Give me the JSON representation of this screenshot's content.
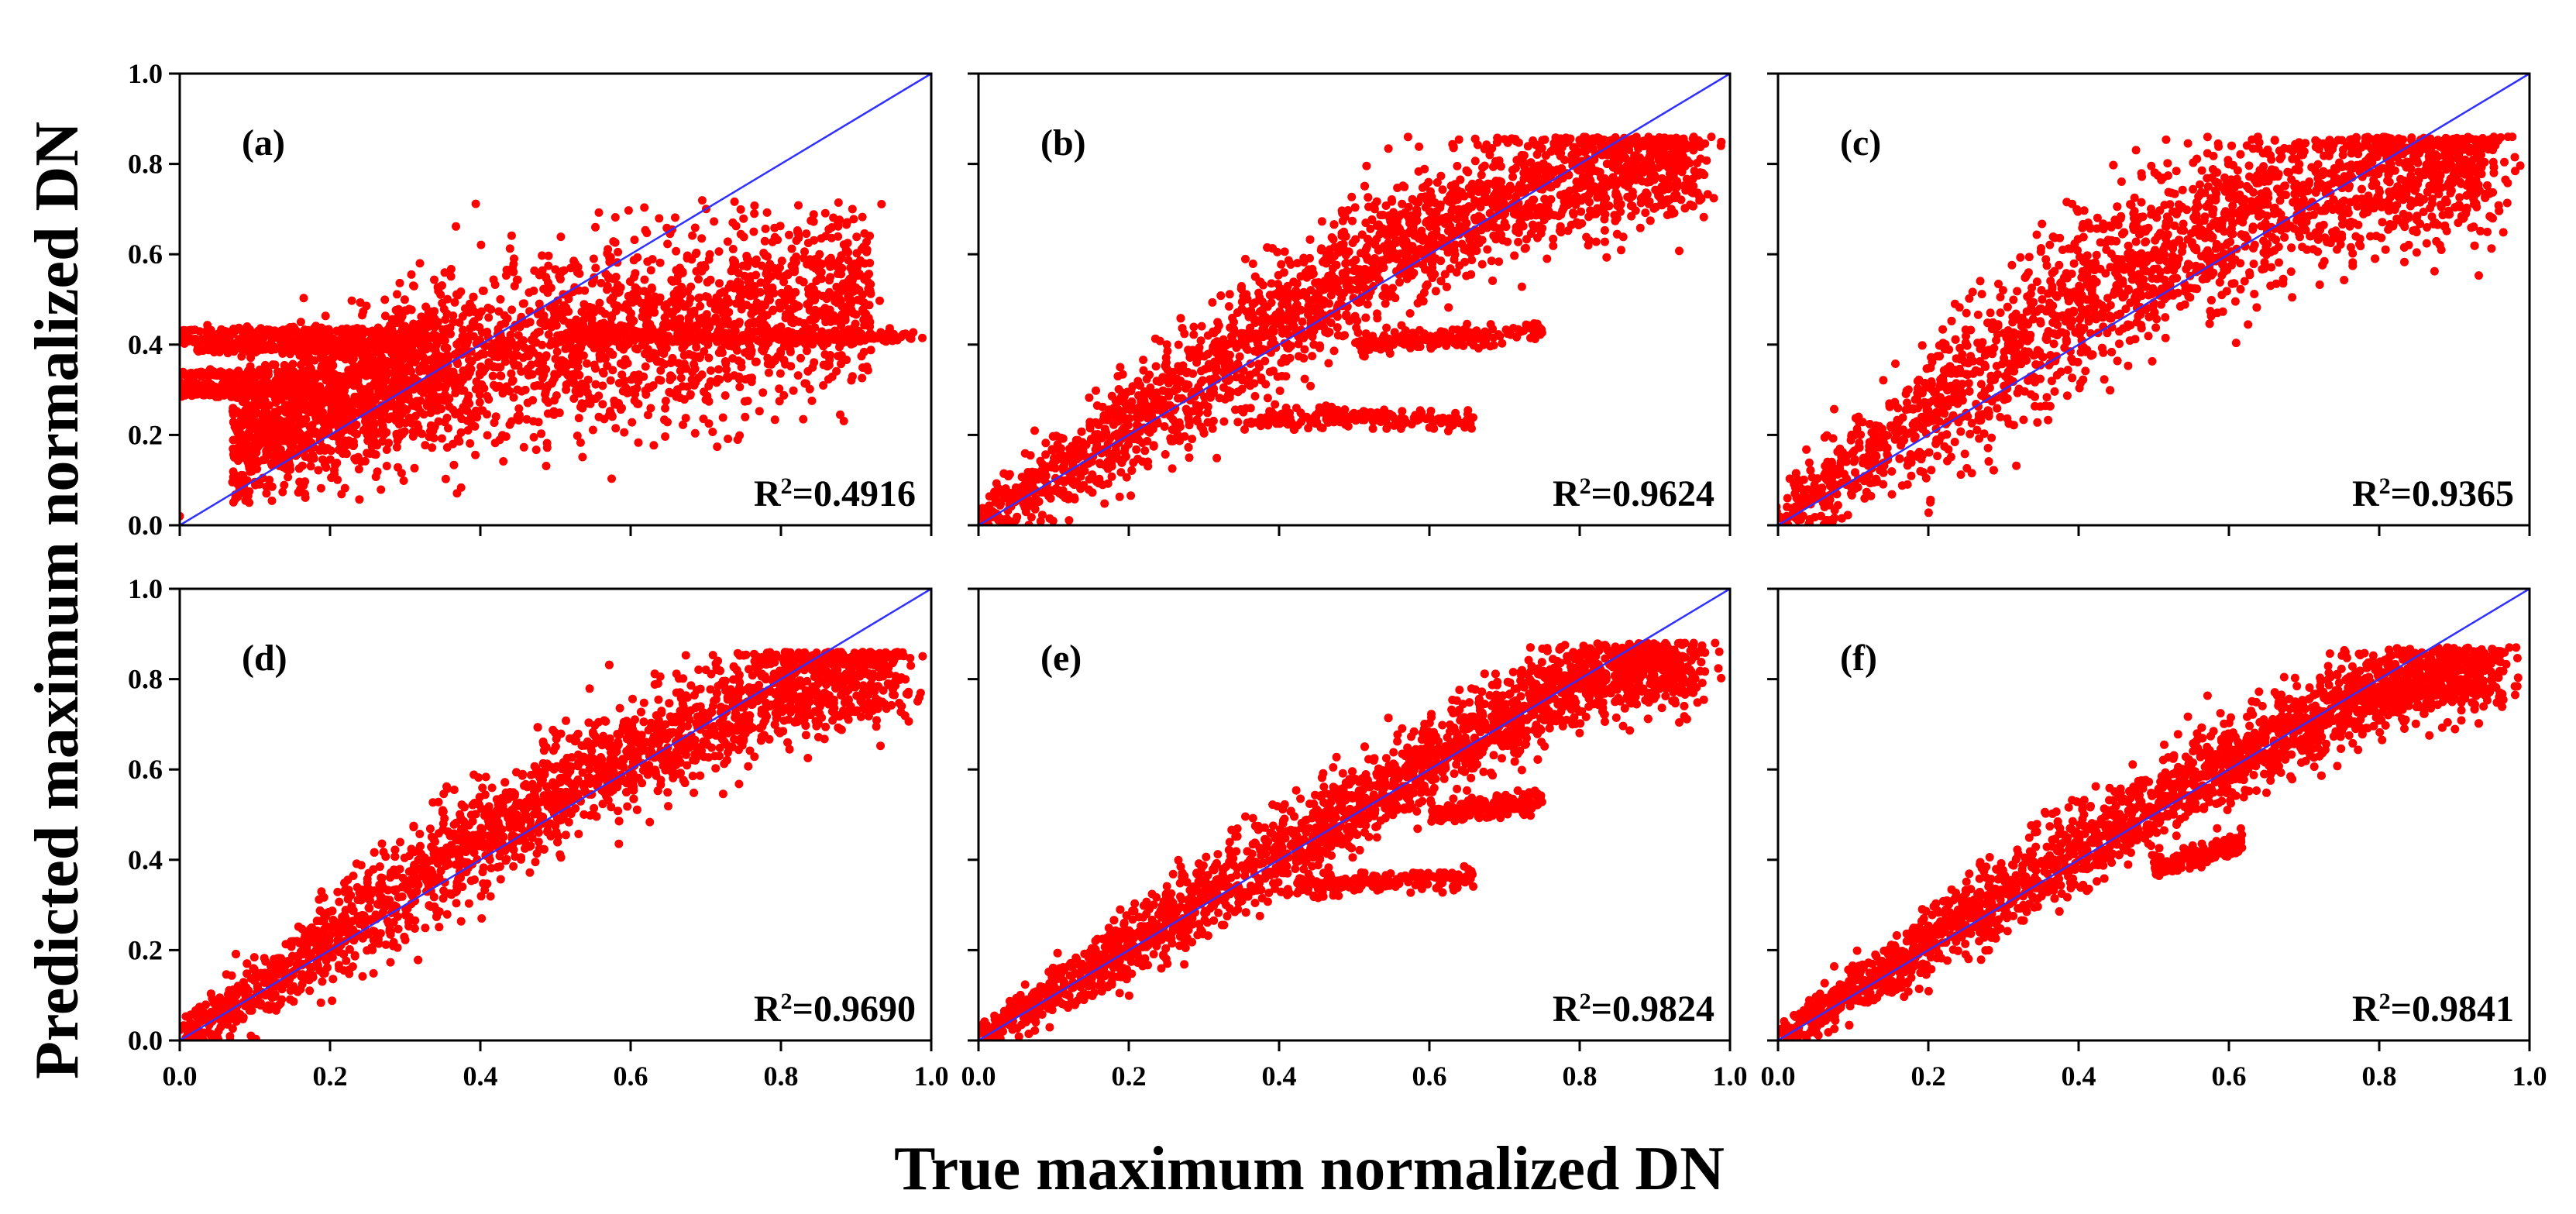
{
  "colors": {
    "points": "#ff0000",
    "reference_line": "#3030ff",
    "axes": "#000000",
    "background": "#ffffff"
  },
  "figure": {
    "ylabel": "Predicted maximum normalized DN",
    "xlabel": "True maximum normalized DN"
  },
  "chart_data": [
    {
      "type": "scatter",
      "panel": "(a)",
      "annotation_r2_prefix": "R",
      "annotation_r2_exp": "2",
      "annotation_r2_value": "=0.4916",
      "xlim": [
        0,
        1
      ],
      "ylim": [
        0,
        1
      ],
      "xticks": [
        "0.0",
        "0.2",
        "0.4",
        "0.6",
        "0.8",
        "1.0"
      ],
      "yticks": [
        "0.0",
        "0.2",
        "0.4",
        "0.6",
        "0.8",
        "1.0"
      ],
      "reference_line": "y = x",
      "point_cloud": {
        "description_regions": [
          {
            "x_range": [
              0.07,
              0.35
            ],
            "y_center_at": [
              [
                0.07,
                0.18
              ],
              [
                0.35,
                0.36
              ]
            ],
            "spread": 0.08
          },
          {
            "x_range": [
              0.35,
              0.92
            ],
            "y_center_at": [
              [
                0.35,
                0.36
              ],
              [
                0.9,
                0.5
              ]
            ],
            "spread": 0.1
          }
        ],
        "horizontal_bands": [
          {
            "y": 0.43,
            "x_range": [
              0.0,
              0.3
            ]
          },
          {
            "y": 0.41,
            "x_range": [
              0.0,
              0.28
            ]
          },
          {
            "y": 0.39,
            "x_range": [
              0.02,
              0.25
            ]
          },
          {
            "y": 0.335,
            "x_range": [
              0.0,
              0.2
            ]
          },
          {
            "y": 0.31,
            "x_range": [
              0.0,
              0.18
            ]
          },
          {
            "y": 0.29,
            "x_range": [
              0.0,
              0.22
            ]
          },
          {
            "y": 0.42,
            "x_range": [
              0.55,
              0.99
            ]
          },
          {
            "y": 0.41,
            "x_range": [
              0.5,
              0.97
            ]
          }
        ],
        "y_max": 0.72,
        "x_max": 0.99
      }
    },
    {
      "type": "scatter",
      "panel": "(b)",
      "annotation_r2_prefix": "R",
      "annotation_r2_exp": "2",
      "annotation_r2_value": "=0.9624",
      "xlim": [
        0,
        1
      ],
      "ylim": [
        0,
        1
      ],
      "xticks": [
        "0.0",
        "0.2",
        "0.4",
        "0.6",
        "0.8",
        "1.0"
      ],
      "yticks": [
        "0.0",
        "0.2",
        "0.4",
        "0.6",
        "0.8",
        "1.0"
      ],
      "reference_line": "y = x",
      "point_cloud": {
        "main_trend": [
          [
            0.0,
            0.0
          ],
          [
            0.2,
            0.22
          ],
          [
            0.4,
            0.45
          ],
          [
            0.6,
            0.66
          ],
          [
            0.8,
            0.78
          ],
          [
            0.95,
            0.8
          ]
        ],
        "spread": 0.07,
        "branches": [
          {
            "from": [
              0.5,
              0.4
            ],
            "to": [
              0.75,
              0.43
            ]
          },
          {
            "from": [
              0.35,
              0.24
            ],
            "to": [
              0.66,
              0.23
            ]
          }
        ],
        "y_max": 0.86
      }
    },
    {
      "type": "scatter",
      "panel": "(c)",
      "annotation_r2_prefix": "R",
      "annotation_r2_exp": "2",
      "annotation_r2_value": "=0.9365",
      "xlim": [
        0,
        1
      ],
      "ylim": [
        0,
        1
      ],
      "xticks": [
        "0.0",
        "0.2",
        "0.4",
        "0.6",
        "0.8",
        "1.0"
      ],
      "yticks": [
        "0.0",
        "0.2",
        "0.4",
        "0.6",
        "0.8",
        "1.0"
      ],
      "reference_line": "y = x",
      "point_cloud": {
        "main_trend": [
          [
            0.0,
            0.0
          ],
          [
            0.2,
            0.25
          ],
          [
            0.4,
            0.5
          ],
          [
            0.6,
            0.68
          ],
          [
            0.8,
            0.78
          ],
          [
            0.95,
            0.8
          ]
        ],
        "spread": 0.09,
        "branches": [],
        "y_max": 0.86
      }
    },
    {
      "type": "scatter",
      "panel": "(d)",
      "annotation_r2_prefix": "R",
      "annotation_r2_exp": "2",
      "annotation_r2_value": "=0.9690",
      "xlim": [
        0,
        1
      ],
      "ylim": [
        0,
        1
      ],
      "xticks": [
        "0.0",
        "0.2",
        "0.4",
        "0.6",
        "0.8",
        "1.0"
      ],
      "yticks": [
        "0.0",
        "0.2",
        "0.4",
        "0.6",
        "0.8",
        "1.0"
      ],
      "reference_line": "y = x",
      "point_cloud": {
        "main_trend": [
          [
            0.0,
            0.0
          ],
          [
            0.2,
            0.22
          ],
          [
            0.4,
            0.45
          ],
          [
            0.6,
            0.63
          ],
          [
            0.8,
            0.78
          ],
          [
            0.95,
            0.82
          ]
        ],
        "spread": 0.06,
        "branches": [],
        "y_max": 0.86
      }
    },
    {
      "type": "scatter",
      "panel": "(e)",
      "annotation_r2_prefix": "R",
      "annotation_r2_exp": "2",
      "annotation_r2_value": "=0.9824",
      "xlim": [
        0,
        1
      ],
      "ylim": [
        0,
        1
      ],
      "xticks": [
        "0.0",
        "0.2",
        "0.4",
        "0.6",
        "0.8",
        "1.0"
      ],
      "yticks": [
        "0.0",
        "0.2",
        "0.4",
        "0.6",
        "0.8",
        "1.0"
      ],
      "reference_line": "y = x",
      "point_cloud": {
        "main_trend": [
          [
            0.0,
            0.0
          ],
          [
            0.2,
            0.21
          ],
          [
            0.4,
            0.42
          ],
          [
            0.6,
            0.62
          ],
          [
            0.8,
            0.8
          ],
          [
            0.95,
            0.83
          ]
        ],
        "spread": 0.045,
        "branches": [
          {
            "from": [
              0.42,
              0.34
            ],
            "to": [
              0.66,
              0.36
            ]
          },
          {
            "from": [
              0.6,
              0.5
            ],
            "to": [
              0.75,
              0.53
            ]
          }
        ],
        "y_max": 0.88
      }
    },
    {
      "type": "scatter",
      "panel": "(f)",
      "annotation_r2_prefix": "R",
      "annotation_r2_exp": "2",
      "annotation_r2_value": "=0.9841",
      "xlim": [
        0,
        1
      ],
      "ylim": [
        0,
        1
      ],
      "xticks": [
        "0.0",
        "0.2",
        "0.4",
        "0.6",
        "0.8",
        "1.0"
      ],
      "yticks": [
        "0.0",
        "0.2",
        "0.4",
        "0.6",
        "0.8",
        "1.0"
      ],
      "reference_line": "y = x",
      "point_cloud": {
        "main_trend": [
          [
            0.0,
            0.0
          ],
          [
            0.2,
            0.22
          ],
          [
            0.4,
            0.43
          ],
          [
            0.6,
            0.62
          ],
          [
            0.8,
            0.78
          ],
          [
            0.95,
            0.83
          ]
        ],
        "spread": 0.045,
        "branches": [
          {
            "from": [
              0.5,
              0.38
            ],
            "to": [
              0.62,
              0.44
            ]
          }
        ],
        "y_max": 0.87
      }
    }
  ]
}
